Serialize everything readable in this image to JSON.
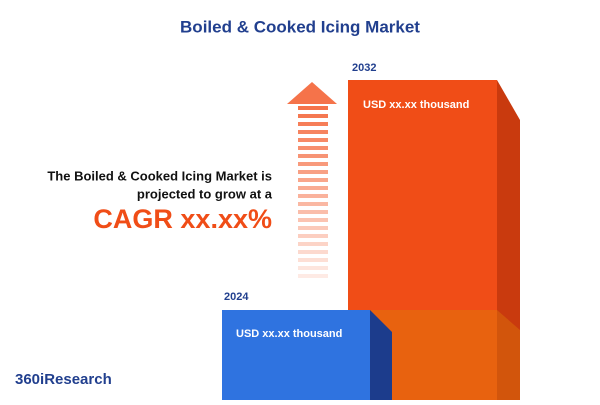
{
  "header": {
    "title": "Boiled & Cooked Icing Market"
  },
  "summary": {
    "line1": "The Boiled & Cooked Icing Market is",
    "line2": "projected to grow at a",
    "cagr": "CAGR xx.xx%"
  },
  "bars": [
    {
      "year": "2024",
      "label": "USD xx.xx thousand"
    },
    {
      "year": "2032",
      "label": "USD xx.xx thousand"
    }
  ],
  "logo": "360iResearch"
}
